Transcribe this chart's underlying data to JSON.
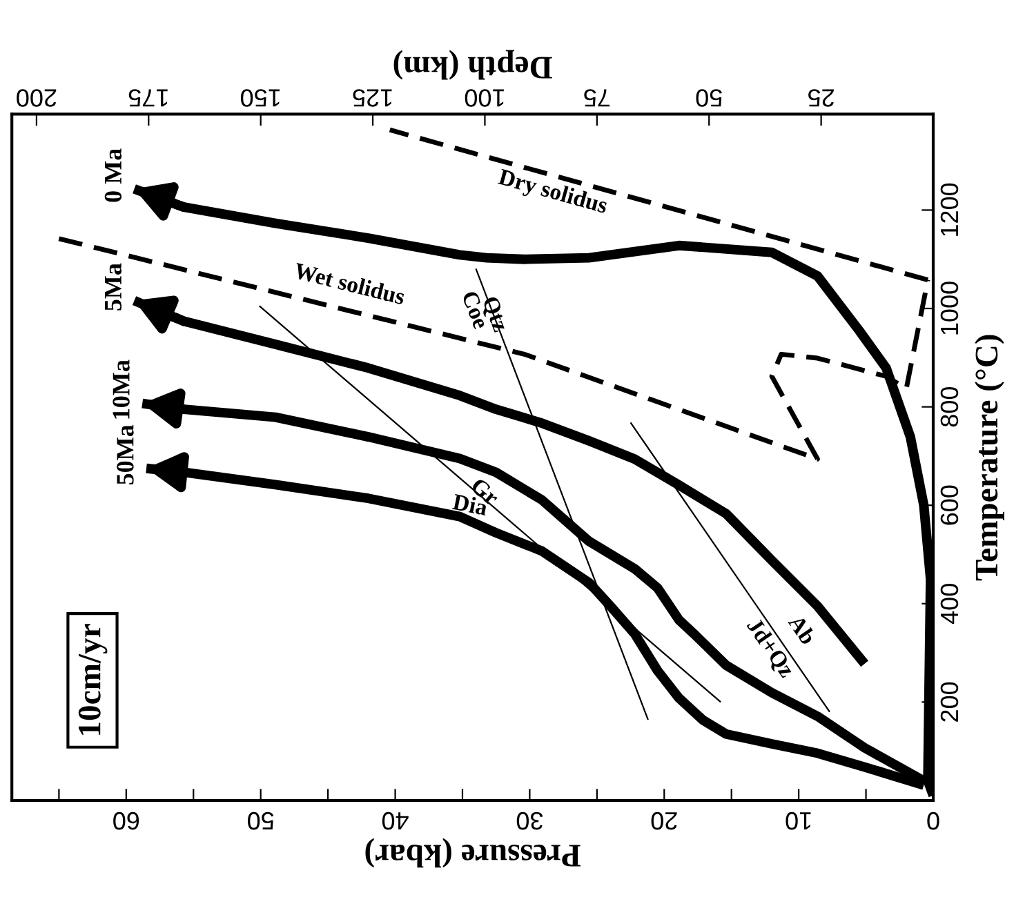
{
  "chart_data": {
    "type": "line",
    "xlabel": "Pressure (kbar)",
    "ylabel": "Temperature (°C)",
    "x2label": "Depth (km)",
    "xlim": [
      68.5,
      0
    ],
    "ylim": [
      0,
      1395
    ],
    "x2lim": [
      205.5,
      0
    ],
    "xticks": [
      {
        "value": 65,
        "label": null
      },
      60,
      {
        "value": 55,
        "label": null
      },
      50,
      {
        "value": 45,
        "label": null
      },
      40,
      {
        "value": 35,
        "label": null
      },
      30,
      {
        "value": 25,
        "label": null
      },
      20,
      {
        "value": 15,
        "label": null
      },
      10,
      {
        "value": 5,
        "label": null
      },
      0
    ],
    "yticks": [
      200,
      400,
      600,
      800,
      1000,
      1200
    ],
    "x2ticks": [
      200,
      175,
      150,
      125,
      100,
      75,
      50,
      25
    ],
    "grid": false,
    "series": [
      {
        "name": "0 Ma",
        "color": "#000000",
        "line_style": "solid",
        "x": [
          0,
          0.4,
          0.2,
          0.7,
          1.7,
          3.5,
          5.5,
          8.6,
          12.0,
          18.9,
          25.6,
          30.4,
          33.2,
          35.2,
          42.0,
          48.9,
          55.7,
          59.4
        ],
        "values": [
          10,
          40,
          450,
          600,
          739,
          879,
          955,
          1066,
          1114,
          1128,
          1103,
          1100,
          1103,
          1109,
          1143,
          1173,
          1206,
          1243
        ]
      },
      {
        "name": "5Ma",
        "color": "#000000",
        "line_style": "solid",
        "x": [
          5.1,
          8.6,
          12.0,
          15.4,
          18.9,
          22.2,
          25.6,
          29.1,
          32.5,
          35.2,
          42.0,
          48.9,
          55.7,
          59.4
        ],
        "values": [
          278,
          395,
          488,
          583,
          641,
          694,
          731,
          767,
          795,
          823,
          879,
          927,
          974,
          1016
        ]
      },
      {
        "name": "10Ma",
        "color": "#000000",
        "line_style": "solid",
        "x": [
          0.7,
          5.1,
          8.6,
          12.0,
          15.4,
          17.8,
          18.9,
          20.5,
          22.2,
          25.6,
          29.1,
          32.5,
          35.2,
          42.0,
          48.9,
          55.7,
          58.8
        ],
        "values": [
          40,
          107,
          171,
          219,
          275,
          339,
          367,
          432,
          471,
          527,
          611,
          667,
          695,
          739,
          779,
          795,
          807
        ]
      },
      {
        "name": "50Ma",
        "color": "#000000",
        "line_style": "solid",
        "x": [
          0.7,
          5.1,
          8.6,
          12.0,
          15.4,
          17.1,
          18.9,
          20.5,
          22.2,
          24.0,
          25.6,
          29.1,
          32.5,
          35.2,
          42.0,
          48.9,
          55.7,
          58.5
        ],
        "values": [
          31,
          68,
          96,
          115,
          135,
          163,
          208,
          264,
          339,
          395,
          443,
          507,
          544,
          577,
          614,
          642,
          667,
          675
        ]
      },
      {
        "color": "#000000",
        "line_style": "dashed",
        "x": [
          65.0,
          30.4,
          8.6,
          12.0,
          11.3,
          8.6,
          3.5,
          2.0,
          0.4
        ],
        "values": [
          1142,
          907,
          694,
          862,
          907,
          899,
          862,
          837,
          1058
        ]
      },
      {
        "color": "#000000",
        "line_style": "dashed",
        "x": [
          0.4,
          40.4
        ],
        "values": [
          1058,
          1363
        ]
      },
      {
        "color": "#000000",
        "line_style": "solid",
        "x": [
          50.1,
          15.8
        ],
        "values": [
          1005,
          200
        ]
      },
      {
        "color": "#000000",
        "line_style": "solid",
        "x": [
          34.0,
          21.2
        ],
        "values": [
          1081,
          164
        ]
      },
      {
        "color": "#000000",
        "line_style": "solid",
        "x": [
          22.5,
          7.7
        ],
        "values": [
          768,
          180
        ]
      }
    ],
    "annotations": [
      "Wet solidus",
      "Dry solidus",
      "Coe",
      "Qtz",
      "Dia",
      "Gr",
      "Ab",
      "Jd+Qz",
      "10cm/yr"
    ]
  }
}
